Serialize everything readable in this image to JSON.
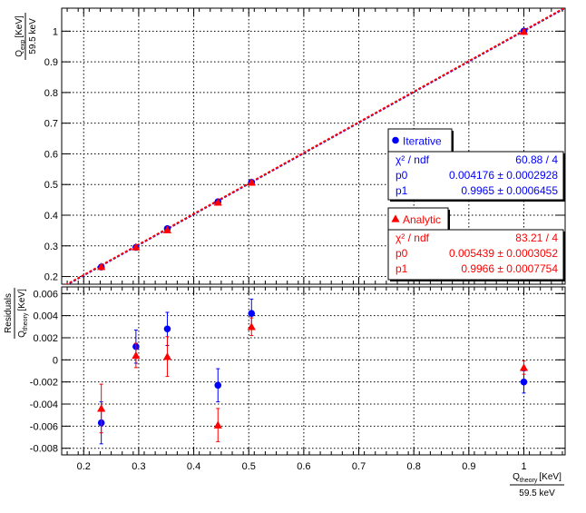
{
  "chart_data": [
    {
      "panel": "top",
      "type": "scatter",
      "ylabel": {
        "main": "Q",
        "sub": "exp",
        "unit": "[KeV]",
        "denominator": "59.5 keV"
      },
      "xlim": [
        0.16,
        1.075
      ],
      "ylim": [
        0.175,
        1.075
      ],
      "yticks": [
        0.2,
        0.3,
        0.4,
        0.5,
        0.6,
        0.7,
        0.8,
        0.9,
        1
      ],
      "ytick_labels": [
        "0.2",
        "0.3",
        "0.4",
        "0.5",
        "0.6",
        "0.7",
        "0.8",
        "0.9",
        "1"
      ],
      "grid": true,
      "series": [
        {
          "name": "Iterative",
          "color": "#0000ff",
          "marker": "circle",
          "x": [
            0.232,
            0.295,
            0.352,
            0.444,
            0.505,
            1.0
          ],
          "y": [
            0.231,
            0.295,
            0.356,
            0.444,
            0.507,
            1.0
          ]
        },
        {
          "name": "Analytic",
          "color": "#ff0000",
          "marker": "triangle",
          "x": [
            0.232,
            0.295,
            0.352,
            0.444,
            0.505,
            1.0
          ],
          "y": [
            0.232,
            0.296,
            0.352,
            0.442,
            0.507,
            0.999
          ]
        }
      ],
      "fit_lines": [
        {
          "series": "Iterative",
          "color": "#0000ff",
          "p0": 0.004176,
          "p1": 0.9965
        },
        {
          "series": "Analytic",
          "color": "#ff0000",
          "p0": 0.005439,
          "p1": 0.9966
        }
      ]
    },
    {
      "panel": "bottom",
      "type": "scatter",
      "ylabel": {
        "main": "Residuals",
        "denom_main": "Q",
        "denom_sub": "theory",
        "unit": "[KeV]"
      },
      "xlabel": {
        "main": "Q",
        "sub": "theory",
        "unit": "[KeV]",
        "denominator": "59.5 keV"
      },
      "xlim": [
        0.16,
        1.075
      ],
      "ylim": [
        -0.0086,
        0.0066
      ],
      "xticks": [
        0.2,
        0.3,
        0.4,
        0.5,
        0.6,
        0.7,
        0.8,
        0.9,
        1
      ],
      "xtick_labels": [
        "0.2",
        "0.3",
        "0.4",
        "0.5",
        "0.6",
        "0.7",
        "0.8",
        "0.9",
        "1"
      ],
      "yticks": [
        -0.008,
        -0.006,
        -0.004,
        -0.002,
        0,
        0.002,
        0.004,
        0.006
      ],
      "ytick_labels": [
        "-0.008",
        "-0.006",
        "-0.004",
        "-0.002",
        "0",
        "0.002",
        "0.004",
        "0.006"
      ],
      "grid": true,
      "series": [
        {
          "name": "Iterative",
          "color": "#0000ff",
          "marker": "circle",
          "x": [
            0.232,
            0.295,
            0.352,
            0.444,
            0.505,
            1.0
          ],
          "y": [
            -0.0057,
            0.0012,
            0.0028,
            -0.0023,
            0.0042,
            -0.002
          ],
          "yerr": [
            0.0019,
            0.0015,
            0.0015,
            0.0015,
            0.0013,
            0.001
          ]
        },
        {
          "name": "Analytic",
          "color": "#ff0000",
          "marker": "triangle",
          "x": [
            0.232,
            0.295,
            0.352,
            0.444,
            0.505,
            1.0
          ],
          "y": [
            -0.0044,
            0.0004,
            0.0003,
            -0.0059,
            0.003,
            -0.0007
          ],
          "yerr": [
            0.0022,
            0.0011,
            0.0018,
            0.0015,
            0.0008,
            0.0006
          ]
        }
      ]
    }
  ],
  "stat_boxes": [
    {
      "title": "Iterative",
      "color": "#0000ff",
      "marker": "circle",
      "rows": [
        {
          "label": "χ² / ndf",
          "value": "60.88 / 4"
        },
        {
          "label": "p0",
          "value": "0.004176 ± 0.0002928"
        },
        {
          "label": "p1",
          "value": "0.9965 ± 0.0006455"
        }
      ]
    },
    {
      "title": "Analytic",
      "color": "#ff0000",
      "marker": "triangle",
      "rows": [
        {
          "label": "χ² / ndf",
          "value": "83.21 / 4"
        },
        {
          "label": "p0",
          "value": "0.005439 ± 0.0003052"
        },
        {
          "label": "p1",
          "value": "0.9966 ± 0.0007754"
        }
      ]
    }
  ]
}
